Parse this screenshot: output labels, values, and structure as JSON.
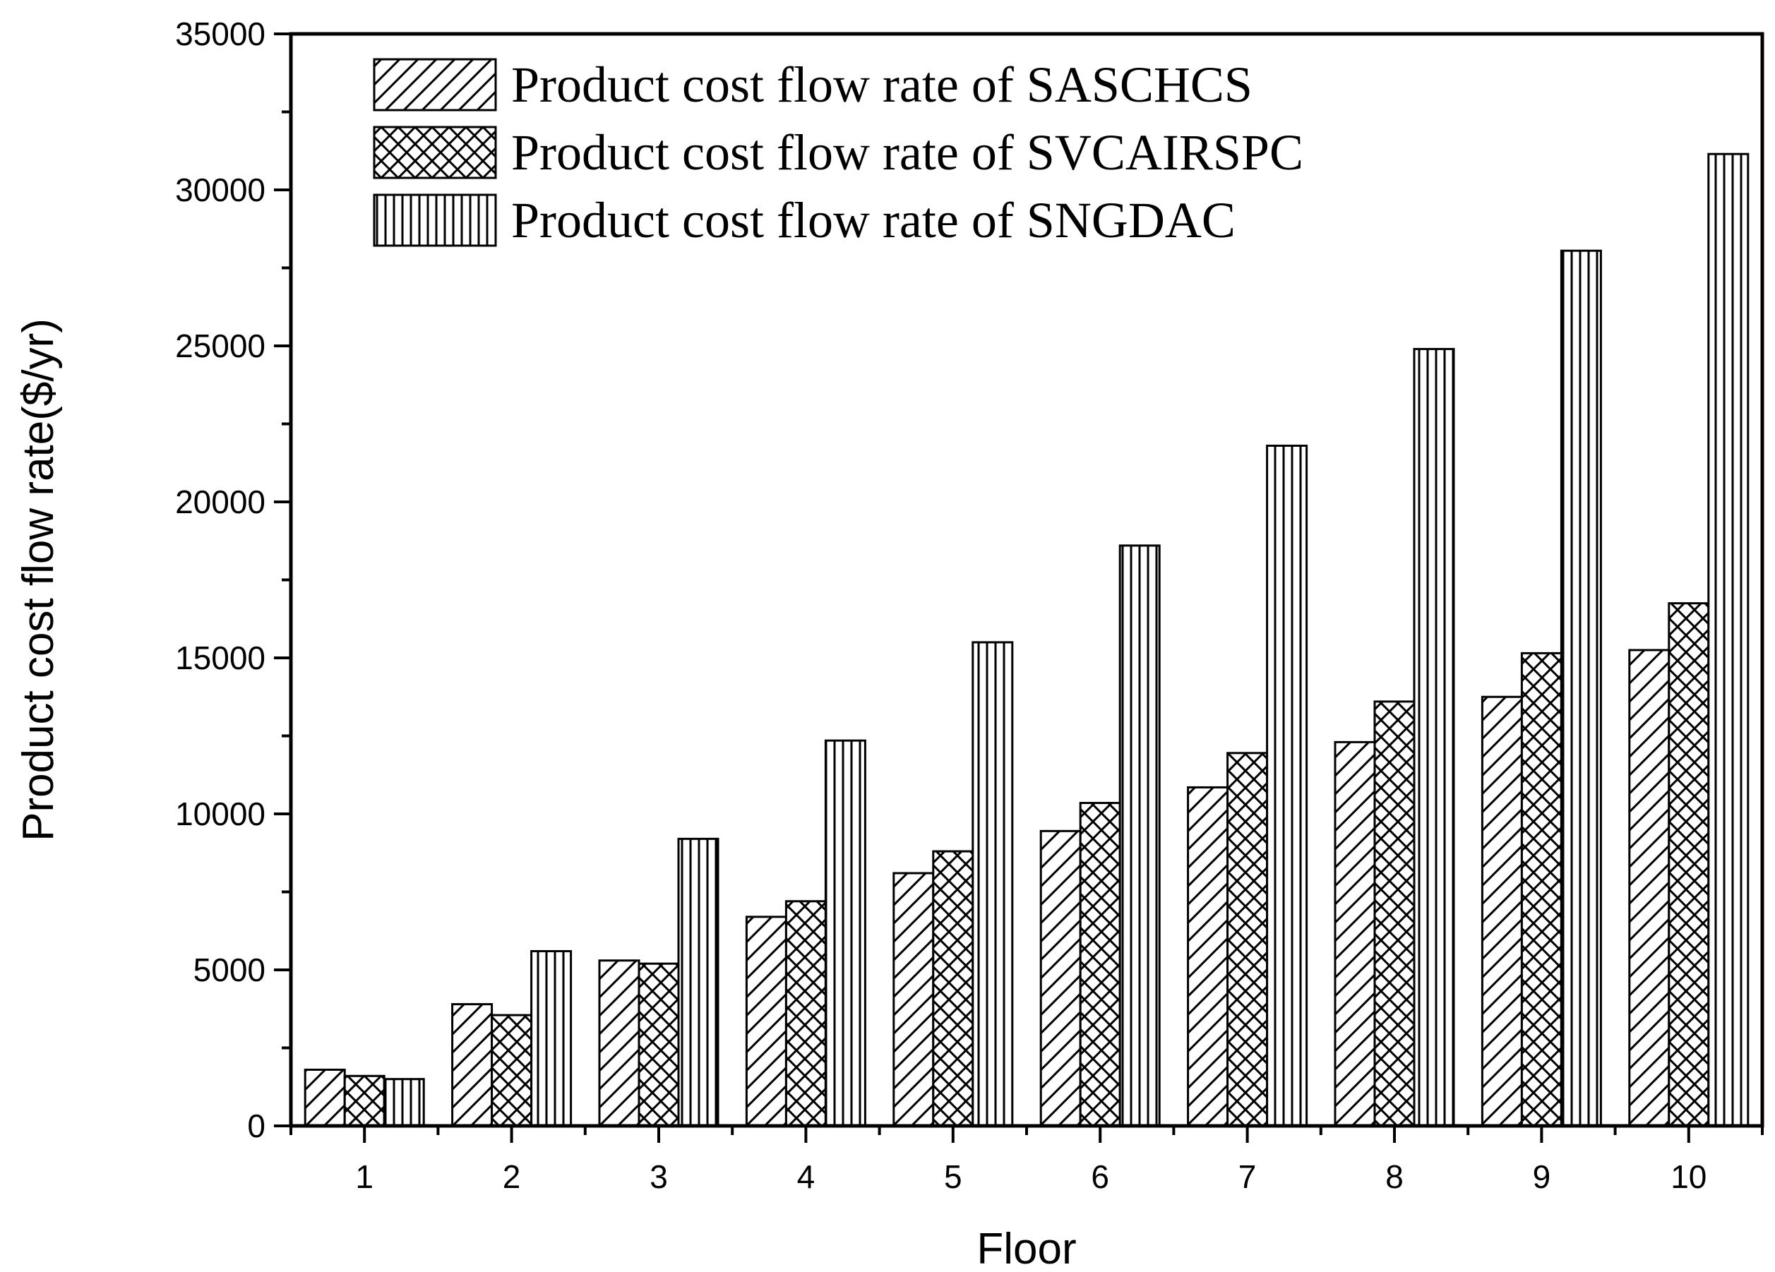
{
  "chart_data": {
    "type": "bar",
    "title": "",
    "xlabel": "Floor",
    "ylabel": "Product cost flow rate($/yr)",
    "categories": [
      "1",
      "2",
      "3",
      "4",
      "5",
      "6",
      "7",
      "8",
      "9",
      "10"
    ],
    "ylim": [
      0,
      35000
    ],
    "yticks": [
      0,
      5000,
      10000,
      15000,
      20000,
      25000,
      30000,
      35000
    ],
    "ytick_labels": [
      "0",
      "5000",
      "10000",
      "15000",
      "20000",
      "25000",
      "30000",
      "35000"
    ],
    "grid": false,
    "legend_position": "top-left",
    "series": [
      {
        "name": "Product cost flow rate of SASCHCS",
        "pattern": "diagonal-hatch",
        "values": [
          1800,
          3900,
          5300,
          6700,
          8100,
          9450,
          10850,
          12300,
          13750,
          15250
        ]
      },
      {
        "name": "Product cost flow rate of SVCAIRSPC",
        "pattern": "crosshatch",
        "values": [
          1600,
          3550,
          5200,
          7200,
          8800,
          10350,
          11950,
          13600,
          15150,
          16750
        ]
      },
      {
        "name": "Product cost flow rate of SNGDAC",
        "pattern": "vertical-lines",
        "values": [
          1500,
          5600,
          9200,
          12350,
          15500,
          18600,
          21800,
          24900,
          28050,
          31150
        ]
      }
    ]
  }
}
